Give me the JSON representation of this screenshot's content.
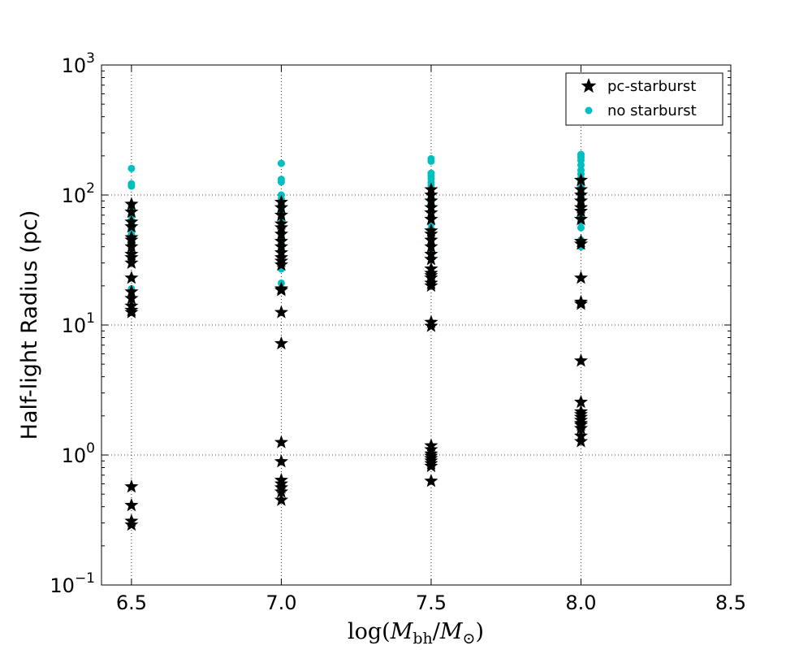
{
  "chart_data": {
    "type": "scatter",
    "title": "",
    "xlabel": "log(M_bh/M_⊙)",
    "xlabel_parts": {
      "func": "log(",
      "m1": "M",
      "sub1": "bh",
      "slash": "/",
      "m2": "M",
      "sub2": "⊙",
      "close": ")"
    },
    "ylabel": "Half-light Radius (pc)",
    "xlim": [
      6.4,
      8.5
    ],
    "ylim": [
      0.1,
      1000
    ],
    "yscale": "log",
    "grid": true,
    "legend_position": "top-right",
    "x_ticks": [
      {
        "value": 6.5,
        "label": "6.5"
      },
      {
        "value": 7.0,
        "label": "7.0"
      },
      {
        "value": 7.5,
        "label": "7.5"
      },
      {
        "value": 8.0,
        "label": "8.0"
      },
      {
        "value": 8.5,
        "label": "8.5"
      }
    ],
    "y_ticks": [
      {
        "value": 0.1,
        "base": "10",
        "exp": "−1"
      },
      {
        "value": 1,
        "base": "10",
        "exp": "0"
      },
      {
        "value": 10,
        "base": "10",
        "exp": "1"
      },
      {
        "value": 100,
        "base": "10",
        "exp": "2"
      },
      {
        "value": 1000,
        "base": "10",
        "exp": "3"
      }
    ],
    "series": [
      {
        "name": "no starburst",
        "marker": "circle",
        "color": "#00bfbf",
        "points": [
          {
            "x": 6.5,
            "y": 160
          },
          {
            "x": 6.5,
            "y": 122
          },
          {
            "x": 6.5,
            "y": 117
          },
          {
            "x": 6.5,
            "y": 84
          },
          {
            "x": 6.5,
            "y": 77
          },
          {
            "x": 6.5,
            "y": 70
          },
          {
            "x": 6.5,
            "y": 64
          },
          {
            "x": 6.5,
            "y": 60
          },
          {
            "x": 6.5,
            "y": 55
          },
          {
            "x": 6.5,
            "y": 50
          },
          {
            "x": 6.5,
            "y": 45
          },
          {
            "x": 6.5,
            "y": 42
          },
          {
            "x": 6.5,
            "y": 39
          },
          {
            "x": 6.5,
            "y": 36
          },
          {
            "x": 6.5,
            "y": 33
          },
          {
            "x": 6.5,
            "y": 31
          },
          {
            "x": 6.5,
            "y": 23
          },
          {
            "x": 6.5,
            "y": 19
          },
          {
            "x": 7.0,
            "y": 175
          },
          {
            "x": 7.0,
            "y": 132
          },
          {
            "x": 7.0,
            "y": 126
          },
          {
            "x": 7.0,
            "y": 100
          },
          {
            "x": 7.0,
            "y": 93
          },
          {
            "x": 7.0,
            "y": 86
          },
          {
            "x": 7.0,
            "y": 80
          },
          {
            "x": 7.0,
            "y": 73
          },
          {
            "x": 7.0,
            "y": 67
          },
          {
            "x": 7.0,
            "y": 62
          },
          {
            "x": 7.0,
            "y": 56
          },
          {
            "x": 7.0,
            "y": 50
          },
          {
            "x": 7.0,
            "y": 46
          },
          {
            "x": 7.0,
            "y": 42
          },
          {
            "x": 7.0,
            "y": 38
          },
          {
            "x": 7.0,
            "y": 34
          },
          {
            "x": 7.0,
            "y": 31
          },
          {
            "x": 7.0,
            "y": 27
          },
          {
            "x": 7.0,
            "y": 21
          },
          {
            "x": 7.5,
            "y": 190
          },
          {
            "x": 7.5,
            "y": 182
          },
          {
            "x": 7.5,
            "y": 147
          },
          {
            "x": 7.5,
            "y": 140
          },
          {
            "x": 7.5,
            "y": 133
          },
          {
            "x": 7.5,
            "y": 125
          },
          {
            "x": 7.5,
            "y": 119
          },
          {
            "x": 7.5,
            "y": 100
          },
          {
            "x": 7.5,
            "y": 94
          },
          {
            "x": 7.5,
            "y": 88
          },
          {
            "x": 7.5,
            "y": 82
          },
          {
            "x": 7.5,
            "y": 75
          },
          {
            "x": 7.5,
            "y": 67
          },
          {
            "x": 7.5,
            "y": 60
          },
          {
            "x": 7.5,
            "y": 55
          },
          {
            "x": 7.5,
            "y": 49
          },
          {
            "x": 7.5,
            "y": 45
          },
          {
            "x": 7.5,
            "y": 41
          },
          {
            "x": 7.5,
            "y": 37
          },
          {
            "x": 7.5,
            "y": 33
          },
          {
            "x": 8.0,
            "y": 205
          },
          {
            "x": 8.0,
            "y": 195
          },
          {
            "x": 8.0,
            "y": 185
          },
          {
            "x": 8.0,
            "y": 170
          },
          {
            "x": 8.0,
            "y": 155
          },
          {
            "x": 8.0,
            "y": 145
          },
          {
            "x": 8.0,
            "y": 135
          },
          {
            "x": 8.0,
            "y": 125
          },
          {
            "x": 8.0,
            "y": 118
          },
          {
            "x": 8.0,
            "y": 110
          },
          {
            "x": 8.0,
            "y": 103
          },
          {
            "x": 8.0,
            "y": 97
          },
          {
            "x": 8.0,
            "y": 90
          },
          {
            "x": 8.0,
            "y": 85
          },
          {
            "x": 8.0,
            "y": 80
          },
          {
            "x": 8.0,
            "y": 74
          },
          {
            "x": 8.0,
            "y": 68
          },
          {
            "x": 8.0,
            "y": 62
          },
          {
            "x": 8.0,
            "y": 56
          },
          {
            "x": 8.0,
            "y": 45
          },
          {
            "x": 8.0,
            "y": 42
          },
          {
            "x": 8.0,
            "y": 40
          }
        ]
      },
      {
        "name": "pc-starburst",
        "marker": "star",
        "color": "#000000",
        "points": [
          {
            "x": 6.5,
            "y": 85
          },
          {
            "x": 6.5,
            "y": 74
          },
          {
            "x": 6.5,
            "y": 62
          },
          {
            "x": 6.5,
            "y": 57
          },
          {
            "x": 6.5,
            "y": 47
          },
          {
            "x": 6.5,
            "y": 45
          },
          {
            "x": 6.5,
            "y": 40
          },
          {
            "x": 6.5,
            "y": 35
          },
          {
            "x": 6.5,
            "y": 33
          },
          {
            "x": 6.5,
            "y": 30
          },
          {
            "x": 6.5,
            "y": 23
          },
          {
            "x": 6.5,
            "y": 18
          },
          {
            "x": 6.5,
            "y": 16
          },
          {
            "x": 6.5,
            "y": 14
          },
          {
            "x": 6.5,
            "y": 13
          },
          {
            "x": 6.5,
            "y": 12.5
          },
          {
            "x": 6.5,
            "y": 0.57
          },
          {
            "x": 6.5,
            "y": 0.41
          },
          {
            "x": 6.5,
            "y": 0.31
          },
          {
            "x": 6.5,
            "y": 0.29
          },
          {
            "x": 7.0,
            "y": 88
          },
          {
            "x": 7.0,
            "y": 80
          },
          {
            "x": 7.0,
            "y": 70
          },
          {
            "x": 7.0,
            "y": 60
          },
          {
            "x": 7.0,
            "y": 56
          },
          {
            "x": 7.0,
            "y": 50
          },
          {
            "x": 7.0,
            "y": 44
          },
          {
            "x": 7.0,
            "y": 40
          },
          {
            "x": 7.0,
            "y": 36
          },
          {
            "x": 7.0,
            "y": 33
          },
          {
            "x": 7.0,
            "y": 31
          },
          {
            "x": 7.0,
            "y": 29
          },
          {
            "x": 7.0,
            "y": 19
          },
          {
            "x": 7.0,
            "y": 18.5
          },
          {
            "x": 7.0,
            "y": 12.5
          },
          {
            "x": 7.0,
            "y": 7.2
          },
          {
            "x": 7.0,
            "y": 1.25
          },
          {
            "x": 7.0,
            "y": 0.89
          },
          {
            "x": 7.0,
            "y": 0.64
          },
          {
            "x": 7.0,
            "y": 0.6
          },
          {
            "x": 7.0,
            "y": 0.56
          },
          {
            "x": 7.0,
            "y": 0.52
          },
          {
            "x": 7.0,
            "y": 0.45
          },
          {
            "x": 7.5,
            "y": 110
          },
          {
            "x": 7.5,
            "y": 100
          },
          {
            "x": 7.5,
            "y": 90
          },
          {
            "x": 7.5,
            "y": 80
          },
          {
            "x": 7.5,
            "y": 73
          },
          {
            "x": 7.5,
            "y": 65
          },
          {
            "x": 7.5,
            "y": 53
          },
          {
            "x": 7.5,
            "y": 50
          },
          {
            "x": 7.5,
            "y": 45
          },
          {
            "x": 7.5,
            "y": 40
          },
          {
            "x": 7.5,
            "y": 35
          },
          {
            "x": 7.5,
            "y": 32
          },
          {
            "x": 7.5,
            "y": 27
          },
          {
            "x": 7.5,
            "y": 25
          },
          {
            "x": 7.5,
            "y": 24
          },
          {
            "x": 7.5,
            "y": 23
          },
          {
            "x": 7.5,
            "y": 21
          },
          {
            "x": 7.5,
            "y": 20
          },
          {
            "x": 7.5,
            "y": 10.5
          },
          {
            "x": 7.5,
            "y": 9.8
          },
          {
            "x": 7.5,
            "y": 1.18
          },
          {
            "x": 7.5,
            "y": 1.1
          },
          {
            "x": 7.5,
            "y": 1.02
          },
          {
            "x": 7.5,
            "y": 0.98
          },
          {
            "x": 7.5,
            "y": 0.94
          },
          {
            "x": 7.5,
            "y": 0.9
          },
          {
            "x": 7.5,
            "y": 0.86
          },
          {
            "x": 7.5,
            "y": 0.82
          },
          {
            "x": 7.5,
            "y": 0.63
          },
          {
            "x": 8.0,
            "y": 130
          },
          {
            "x": 8.0,
            "y": 110
          },
          {
            "x": 8.0,
            "y": 100
          },
          {
            "x": 8.0,
            "y": 90
          },
          {
            "x": 8.0,
            "y": 80
          },
          {
            "x": 8.0,
            "y": 75
          },
          {
            "x": 8.0,
            "y": 65
          },
          {
            "x": 8.0,
            "y": 44
          },
          {
            "x": 8.0,
            "y": 42
          },
          {
            "x": 8.0,
            "y": 23
          },
          {
            "x": 8.0,
            "y": 15
          },
          {
            "x": 8.0,
            "y": 14.5
          },
          {
            "x": 8.0,
            "y": 5.3
          },
          {
            "x": 8.0,
            "y": 2.55
          },
          {
            "x": 8.0,
            "y": 2.15
          },
          {
            "x": 8.0,
            "y": 2.05
          },
          {
            "x": 8.0,
            "y": 1.95
          },
          {
            "x": 8.0,
            "y": 1.85
          },
          {
            "x": 8.0,
            "y": 1.75
          },
          {
            "x": 8.0,
            "y": 1.7
          },
          {
            "x": 8.0,
            "y": 1.6
          },
          {
            "x": 8.0,
            "y": 1.4
          },
          {
            "x": 8.0,
            "y": 1.27
          }
        ]
      }
    ],
    "legend": [
      {
        "label": "pc-starburst",
        "marker": "star",
        "color": "#000000"
      },
      {
        "label": "no starburst",
        "marker": "circle",
        "color": "#00bfbf"
      }
    ]
  }
}
